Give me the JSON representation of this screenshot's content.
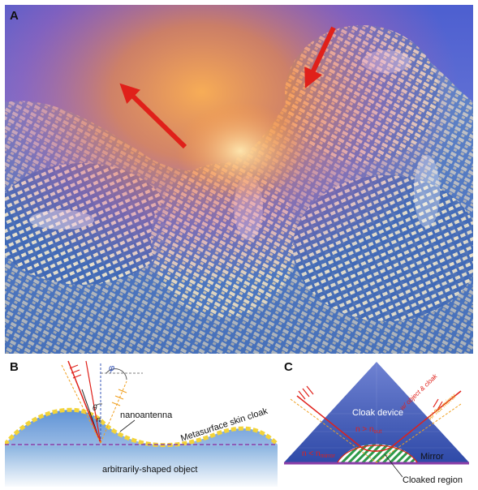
{
  "panels": {
    "a": {
      "label": "A"
    },
    "b": {
      "label": "B",
      "angle_phi": "φ",
      "angle_theta": "θ",
      "normal": "n",
      "nanoantenna": "nanoantenna",
      "cloak": "Metasurface skin cloak",
      "object": "arbitrarily-shaped object"
    },
    "c": {
      "label": "C",
      "device": "Cloak device",
      "index_inside": "n > n",
      "index_inside_sub": "out",
      "index_left": "n < n",
      "index_left_sub": "mirror",
      "ray_cloak": "w/ object & cloak",
      "ray_flat": "w/ flat mirror",
      "mirror": "Mirror",
      "region": "Cloaked region"
    }
  },
  "colors": {
    "sky": "#4a5bc2",
    "glow": "#ff9a3c",
    "arrow": "#e0201a",
    "cloak_yellow": "#f2d33a",
    "object_blue": "#3f78c8",
    "prism_blue": "#3a58b8",
    "mirror_purple": "#8a3fa8",
    "region_green": "#2e9a4a"
  }
}
